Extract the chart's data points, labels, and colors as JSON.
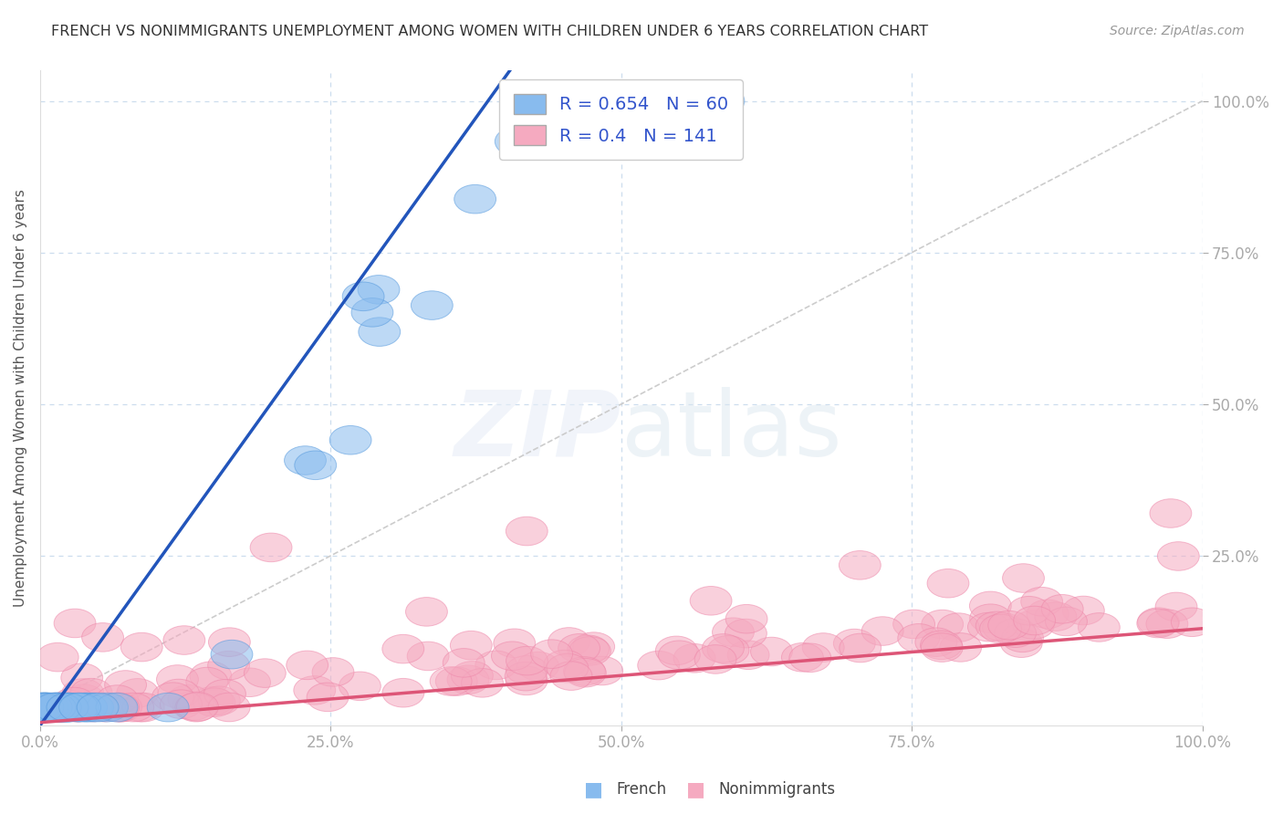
{
  "title": "FRENCH VS NONIMMIGRANTS UNEMPLOYMENT AMONG WOMEN WITH CHILDREN UNDER 6 YEARS CORRELATION CHART",
  "source": "Source: ZipAtlas.com",
  "ylabel": "Unemployment Among Women with Children Under 6 years",
  "xlim": [
    0,
    1
  ],
  "ylim": [
    -0.03,
    1.05
  ],
  "xticks": [
    0.0,
    0.25,
    0.5,
    0.75,
    1.0
  ],
  "yticks": [
    0.25,
    0.5,
    0.75,
    1.0
  ],
  "xticklabels": [
    "0.0%",
    "25.0%",
    "50.0%",
    "75.0%",
    "100.0%"
  ],
  "yticklabels": [
    "25.0%",
    "50.0%",
    "75.0%",
    "100.0%"
  ],
  "french_R": 0.654,
  "french_N": 60,
  "nonimm_R": 0.4,
  "nonimm_N": 141,
  "french_color": "#88bbee",
  "nonimm_color": "#f5aac0",
  "french_edge_color": "#5599dd",
  "nonimm_edge_color": "#ee88aa",
  "french_line_color": "#2255bb",
  "nonimm_line_color": "#dd5577",
  "ref_line_color": "#cccccc",
  "background_color": "#ffffff",
  "grid_color": "#ccddee",
  "title_color": "#333333",
  "label_color": "#3355cc",
  "source_color": "#999999",
  "ylabel_color": "#555555",
  "alpha": 0.55,
  "french_line_intercept": -0.32,
  "french_line_slope": 3.2,
  "nonimm_line_intercept": -0.025,
  "nonimm_line_slope": 0.155
}
